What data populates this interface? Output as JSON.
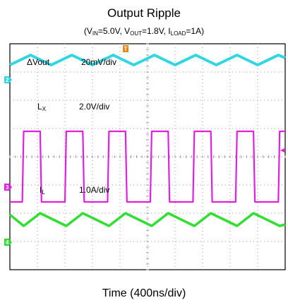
{
  "chart_data": {
    "type": "line",
    "title": "Output Ripple",
    "subtitle_parts": [
      {
        "t": "(V"
      },
      {
        "s": "IN"
      },
      {
        "t": "=5.0V, V"
      },
      {
        "s": "OUT"
      },
      {
        "t": "=1.8V, I"
      },
      {
        "s": "LOAD"
      },
      {
        "t": "=1A)"
      }
    ],
    "xlabel": "Time (400ns/div)",
    "x_divisions": 10,
    "y_divisions": 8,
    "grid": true,
    "series": [
      {
        "name": "ΔVout",
        "name_main": "ΔVout",
        "name_sub": "",
        "scale": "20mV/div",
        "color": "#33d6e0",
        "x": [
          0,
          0.75,
          1.5,
          2.25,
          3.0,
          3.75,
          4.5,
          5.25,
          6.0,
          6.75,
          7.5,
          8.25,
          9.0,
          9.75,
          10.0
        ],
        "y": [
          7.25,
          7.6,
          7.25,
          7.6,
          7.25,
          7.6,
          7.25,
          7.6,
          7.25,
          7.6,
          7.25,
          7.6,
          7.25,
          7.6,
          7.5
        ]
      },
      {
        "name": "LX",
        "name_main": "L",
        "name_sub": "X",
        "scale": "2.0V/div",
        "color": "#e020e0",
        "x": [
          0,
          0.45,
          0.5,
          1.1,
          1.15,
          2.0,
          2.05,
          2.65,
          2.7,
          3.55,
          3.6,
          4.2,
          4.25,
          5.1,
          5.15,
          5.75,
          5.8,
          6.65,
          6.7,
          7.3,
          7.35,
          8.2,
          8.25,
          8.85,
          8.9,
          9.75,
          9.8,
          10.0
        ],
        "y": [
          2.4,
          2.4,
          4.9,
          4.9,
          2.4,
          2.4,
          4.9,
          4.9,
          2.4,
          2.4,
          4.9,
          4.9,
          2.4,
          2.4,
          4.9,
          4.9,
          2.4,
          2.4,
          4.9,
          4.9,
          2.4,
          2.4,
          4.9,
          4.9,
          2.4,
          2.4,
          4.9,
          4.9
        ]
      },
      {
        "name": "IL",
        "name_main": "I",
        "name_sub": "L",
        "scale": "1.0A/div",
        "color": "#33dd33",
        "x": [
          0,
          0.5,
          1.1,
          2.05,
          2.65,
          3.6,
          4.2,
          5.15,
          5.75,
          6.7,
          7.3,
          8.25,
          8.85,
          9.8,
          10.0
        ],
        "y": [
          1.95,
          1.55,
          2.0,
          1.55,
          2.0,
          1.55,
          2.0,
          1.55,
          2.0,
          1.55,
          2.0,
          1.55,
          2.0,
          1.55,
          1.6
        ]
      }
    ],
    "channel_markers": [
      {
        "label": "2",
        "color": "#33d6e0"
      },
      {
        "label": "3",
        "color": "#e020e0"
      },
      {
        "label": "4",
        "color": "#33dd33"
      }
    ],
    "trigger_marker": {
      "label": "T",
      "color": "#e08a1a"
    }
  }
}
